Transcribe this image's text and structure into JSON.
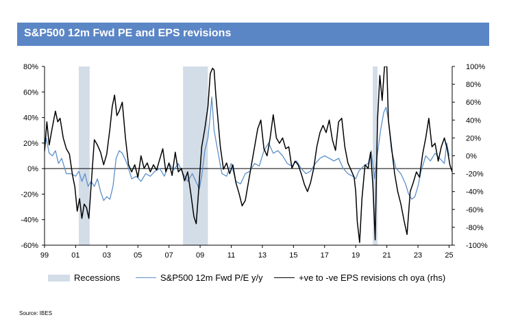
{
  "header": {
    "title": "S&P500 12m Fwd PE and EPS revisions"
  },
  "source": "Source:  IBES",
  "colors": {
    "title_bg": "#5b86c6",
    "recession": "#d3dde8",
    "pe_line": "#5b8fc9",
    "eps_line": "#000000",
    "axis": "#000000"
  },
  "chart_data": {
    "type": "line",
    "title": "S&P500 12m Fwd PE and EPS revisions",
    "x_range": [
      1999,
      2025.2
    ],
    "x_ticks": [
      {
        "label": "99",
        "value": 1999
      },
      {
        "label": "01",
        "value": 2001
      },
      {
        "label": "03",
        "value": 2003
      },
      {
        "label": "05",
        "value": 2005
      },
      {
        "label": "07",
        "value": 2007
      },
      {
        "label": "09",
        "value": 2009
      },
      {
        "label": "11",
        "value": 2011
      },
      {
        "label": "13",
        "value": 2013
      },
      {
        "label": "15",
        "value": 2015
      },
      {
        "label": "17",
        "value": 2017
      },
      {
        "label": "19",
        "value": 2019
      },
      {
        "label": "21",
        "value": 2021
      },
      {
        "label": "23",
        "value": 2023
      },
      {
        "label": "25",
        "value": 2025
      }
    ],
    "y_left": {
      "min": -60,
      "max": 80,
      "ticks": [
        -60,
        -40,
        -20,
        0,
        20,
        40,
        60,
        80
      ],
      "tick_labels": [
        "-60%",
        "-40%",
        "-20%",
        "0%",
        "20%",
        "40%",
        "60%",
        "80%"
      ]
    },
    "y_right": {
      "min": -100,
      "max": 100,
      "ticks": [
        -100,
        -80,
        -60,
        -40,
        -20,
        0,
        20,
        40,
        60,
        80,
        100
      ],
      "tick_labels": [
        "-100%",
        "-80%",
        "-60%",
        "-40%",
        "-20%",
        "0%",
        "20%",
        "40%",
        "60%",
        "80%",
        "100%"
      ]
    },
    "legend": [
      "Recessions",
      "S&P500 12m Fwd P/E y/y",
      "+ve to -ve EPS revisions ch oya (rhs)"
    ],
    "recessions": [
      [
        2001.2,
        2001.9
      ],
      [
        2007.9,
        2009.5
      ],
      [
        2020.1,
        2020.4
      ]
    ],
    "series": [
      {
        "name": "S&P500 12m Fwd P/E y/y",
        "axis": "left",
        "points": [
          [
            1999.0,
            14
          ],
          [
            1999.1,
            24
          ],
          [
            1999.3,
            12
          ],
          [
            1999.5,
            10
          ],
          [
            1999.7,
            14
          ],
          [
            1999.9,
            4
          ],
          [
            2000.1,
            8
          ],
          [
            2000.4,
            -4
          ],
          [
            2000.7,
            -4
          ],
          [
            2001.0,
            -6
          ],
          [
            2001.2,
            -2
          ],
          [
            2001.4,
            -10
          ],
          [
            2001.6,
            -4
          ],
          [
            2001.8,
            -14
          ],
          [
            2002.0,
            -10
          ],
          [
            2002.2,
            -14
          ],
          [
            2002.4,
            -8
          ],
          [
            2002.6,
            -18
          ],
          [
            2002.8,
            -25
          ],
          [
            2003.0,
            -22
          ],
          [
            2003.2,
            -24
          ],
          [
            2003.4,
            -14
          ],
          [
            2003.6,
            8
          ],
          [
            2003.8,
            14
          ],
          [
            2004.0,
            12
          ],
          [
            2004.3,
            4
          ],
          [
            2004.6,
            -8
          ],
          [
            2004.9,
            -6
          ],
          [
            2005.2,
            -10
          ],
          [
            2005.5,
            -4
          ],
          [
            2005.8,
            -6
          ],
          [
            2006.1,
            -2
          ],
          [
            2006.4,
            0
          ],
          [
            2006.7,
            -6
          ],
          [
            2007.0,
            4
          ],
          [
            2007.3,
            -1
          ],
          [
            2007.6,
            4
          ],
          [
            2007.9,
            -4
          ],
          [
            2008.2,
            -10
          ],
          [
            2008.5,
            -4
          ],
          [
            2008.8,
            -12
          ],
          [
            2008.95,
            -16
          ],
          [
            2009.1,
            -6
          ],
          [
            2009.3,
            14
          ],
          [
            2009.5,
            24
          ],
          [
            2009.65,
            42
          ],
          [
            2009.75,
            56
          ],
          [
            2009.9,
            30
          ],
          [
            2010.1,
            16
          ],
          [
            2010.4,
            -4
          ],
          [
            2010.7,
            -6
          ],
          [
            2011.0,
            4
          ],
          [
            2011.3,
            -10
          ],
          [
            2011.6,
            -12
          ],
          [
            2011.9,
            -4
          ],
          [
            2012.2,
            -2
          ],
          [
            2012.5,
            4
          ],
          [
            2012.8,
            2
          ],
          [
            2013.1,
            14
          ],
          [
            2013.4,
            20
          ],
          [
            2013.7,
            12
          ],
          [
            2014.0,
            14
          ],
          [
            2014.3,
            10
          ],
          [
            2014.6,
            4
          ],
          [
            2014.9,
            2
          ],
          [
            2015.2,
            6
          ],
          [
            2015.5,
            0
          ],
          [
            2015.8,
            -4
          ],
          [
            2016.1,
            -2
          ],
          [
            2016.4,
            4
          ],
          [
            2016.7,
            8
          ],
          [
            2017.0,
            10
          ],
          [
            2017.3,
            8
          ],
          [
            2017.6,
            6
          ],
          [
            2017.9,
            8
          ],
          [
            2018.2,
            0
          ],
          [
            2018.5,
            -4
          ],
          [
            2018.8,
            -6
          ],
          [
            2019.0,
            -8
          ],
          [
            2019.2,
            -2
          ],
          [
            2019.5,
            2
          ],
          [
            2019.8,
            4
          ],
          [
            2020.0,
            14
          ],
          [
            2020.2,
            -8
          ],
          [
            2020.4,
            12
          ],
          [
            2020.6,
            30
          ],
          [
            2020.8,
            44
          ],
          [
            2020.95,
            48
          ],
          [
            2021.1,
            38
          ],
          [
            2021.3,
            14
          ],
          [
            2021.6,
            0
          ],
          [
            2021.9,
            -4
          ],
          [
            2022.2,
            -12
          ],
          [
            2022.4,
            -20
          ],
          [
            2022.6,
            -24
          ],
          [
            2022.8,
            -22
          ],
          [
            2023.0,
            -14
          ],
          [
            2023.2,
            -2
          ],
          [
            2023.5,
            10
          ],
          [
            2023.8,
            6
          ],
          [
            2024.1,
            12
          ],
          [
            2024.4,
            8
          ],
          [
            2024.7,
            4
          ],
          [
            2024.85,
            20
          ],
          [
            2025.0,
            10
          ]
        ]
      },
      {
        "name": "+ve to -ve EPS revisions ch oya (rhs)",
        "axis": "right",
        "points": [
          [
            1999.0,
            5
          ],
          [
            1999.15,
            38
          ],
          [
            1999.3,
            12
          ],
          [
            1999.5,
            32
          ],
          [
            1999.7,
            50
          ],
          [
            1999.85,
            38
          ],
          [
            2000.0,
            42
          ],
          [
            2000.2,
            20
          ],
          [
            2000.4,
            8
          ],
          [
            2000.6,
            2
          ],
          [
            2000.8,
            -22
          ],
          [
            2000.95,
            -35
          ],
          [
            2001.1,
            -62
          ],
          [
            2001.25,
            -48
          ],
          [
            2001.4,
            -70
          ],
          [
            2001.55,
            -54
          ],
          [
            2001.7,
            -58
          ],
          [
            2001.85,
            -70
          ],
          [
            2002.0,
            -32
          ],
          [
            2002.2,
            18
          ],
          [
            2002.4,
            12
          ],
          [
            2002.6,
            4
          ],
          [
            2002.8,
            -10
          ],
          [
            2003.0,
            2
          ],
          [
            2003.2,
            30
          ],
          [
            2003.35,
            55
          ],
          [
            2003.5,
            68
          ],
          [
            2003.65,
            45
          ],
          [
            2003.8,
            50
          ],
          [
            2004.0,
            60
          ],
          [
            2004.2,
            20
          ],
          [
            2004.4,
            -10
          ],
          [
            2004.6,
            -18
          ],
          [
            2004.8,
            -10
          ],
          [
            2005.0,
            -24
          ],
          [
            2005.2,
            0
          ],
          [
            2005.4,
            -14
          ],
          [
            2005.6,
            -8
          ],
          [
            2005.8,
            -18
          ],
          [
            2006.0,
            -10
          ],
          [
            2006.2,
            -16
          ],
          [
            2006.4,
            -4
          ],
          [
            2006.6,
            8
          ],
          [
            2006.8,
            -18
          ],
          [
            2007.0,
            -8
          ],
          [
            2007.2,
            -22
          ],
          [
            2007.4,
            4
          ],
          [
            2007.6,
            -18
          ],
          [
            2007.8,
            -14
          ],
          [
            2008.0,
            -28
          ],
          [
            2008.2,
            -18
          ],
          [
            2008.4,
            -42
          ],
          [
            2008.6,
            -68
          ],
          [
            2008.75,
            -76
          ],
          [
            2008.9,
            -40
          ],
          [
            2009.1,
            10
          ],
          [
            2009.3,
            30
          ],
          [
            2009.5,
            55
          ],
          [
            2009.65,
            92
          ],
          [
            2009.8,
            98
          ],
          [
            2009.9,
            96
          ],
          [
            2010.0,
            70
          ],
          [
            2010.15,
            40
          ],
          [
            2010.3,
            10
          ],
          [
            2010.5,
            -15
          ],
          [
            2010.7,
            -8
          ],
          [
            2010.9,
            -20
          ],
          [
            2011.1,
            -10
          ],
          [
            2011.3,
            -30
          ],
          [
            2011.5,
            -42
          ],
          [
            2011.7,
            -56
          ],
          [
            2011.9,
            -50
          ],
          [
            2012.1,
            -30
          ],
          [
            2012.3,
            -10
          ],
          [
            2012.5,
            10
          ],
          [
            2012.7,
            30
          ],
          [
            2012.9,
            40
          ],
          [
            2013.1,
            8
          ],
          [
            2013.3,
            0
          ],
          [
            2013.5,
            20
          ],
          [
            2013.7,
            46
          ],
          [
            2013.9,
            20
          ],
          [
            2014.1,
            14
          ],
          [
            2014.3,
            20
          ],
          [
            2014.5,
            8
          ],
          [
            2014.7,
            10
          ],
          [
            2014.9,
            -14
          ],
          [
            2015.1,
            -6
          ],
          [
            2015.3,
            -10
          ],
          [
            2015.5,
            -20
          ],
          [
            2015.7,
            -32
          ],
          [
            2015.9,
            -40
          ],
          [
            2016.1,
            -30
          ],
          [
            2016.3,
            -14
          ],
          [
            2016.5,
            10
          ],
          [
            2016.7,
            26
          ],
          [
            2016.9,
            34
          ],
          [
            2017.1,
            26
          ],
          [
            2017.3,
            40
          ],
          [
            2017.5,
            18
          ],
          [
            2017.7,
            6
          ],
          [
            2017.9,
            38
          ],
          [
            2018.1,
            42
          ],
          [
            2018.3,
            10
          ],
          [
            2018.5,
            -8
          ],
          [
            2018.7,
            -16
          ],
          [
            2018.9,
            -24
          ],
          [
            2019.0,
            -40
          ],
          [
            2019.1,
            -74
          ],
          [
            2019.25,
            -97
          ],
          [
            2019.4,
            -48
          ],
          [
            2019.6,
            -10
          ],
          [
            2019.8,
            -14
          ],
          [
            2019.95,
            4
          ],
          [
            2020.1,
            -32
          ],
          [
            2020.25,
            -94
          ],
          [
            2020.4,
            40
          ],
          [
            2020.55,
            90
          ],
          [
            2020.7,
            62
          ],
          [
            2020.85,
            100
          ],
          [
            2021.0,
            100
          ],
          [
            2021.1,
            40
          ],
          [
            2021.3,
            10
          ],
          [
            2021.5,
            -20
          ],
          [
            2021.7,
            -40
          ],
          [
            2021.9,
            -54
          ],
          [
            2022.1,
            -72
          ],
          [
            2022.3,
            -88
          ],
          [
            2022.5,
            -40
          ],
          [
            2022.7,
            -30
          ],
          [
            2022.9,
            -18
          ],
          [
            2023.1,
            -24
          ],
          [
            2023.3,
            2
          ],
          [
            2023.5,
            20
          ],
          [
            2023.7,
            42
          ],
          [
            2023.9,
            10
          ],
          [
            2024.1,
            14
          ],
          [
            2024.3,
            -6
          ],
          [
            2024.5,
            10
          ],
          [
            2024.7,
            20
          ],
          [
            2024.9,
            6
          ],
          [
            2025.05,
            -10
          ],
          [
            2025.2,
            -18
          ]
        ]
      }
    ]
  }
}
